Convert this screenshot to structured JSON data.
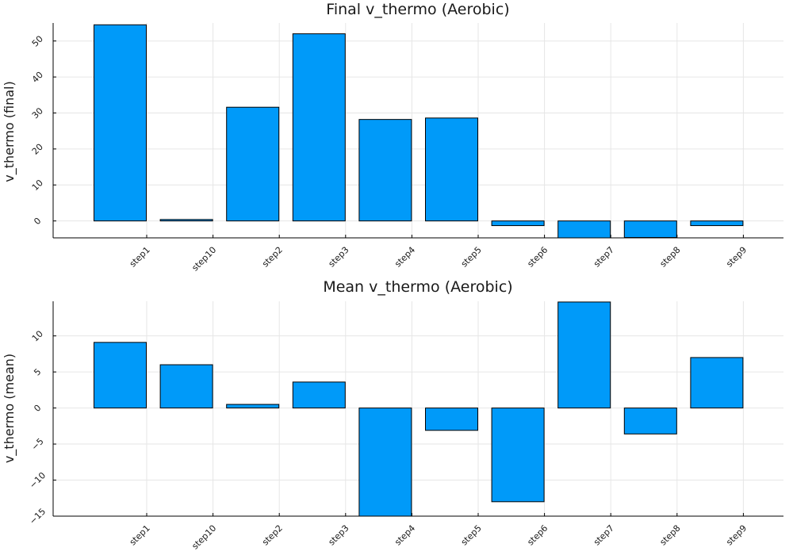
{
  "chart_data": [
    {
      "type": "bar",
      "title": "Final v_thermo (Aerobic)",
      "xlabel": "",
      "ylabel": "v_thermo (final)",
      "categories": [
        "step1",
        "step10",
        "step2",
        "step3",
        "step4",
        "step5",
        "step6",
        "step7",
        "step8",
        "step9"
      ],
      "values": [
        54.5,
        0.4,
        31.6,
        52.0,
        28.2,
        28.6,
        -1.3,
        -5.2,
        -4.6,
        -1.3
      ],
      "ylim": [
        -4.7,
        55.0
      ],
      "yticks": [
        0,
        10,
        20,
        30,
        40,
        50
      ],
      "grid": true,
      "bar_color": "#009af9"
    },
    {
      "type": "bar",
      "title": "Mean v_thermo (Aerobic)",
      "xlabel": "",
      "ylabel": "v_thermo (mean)",
      "categories": [
        "step1",
        "step10",
        "step2",
        "step3",
        "step4",
        "step5",
        "step6",
        "step7",
        "step8",
        "step9"
      ],
      "values": [
        9.1,
        6.0,
        0.5,
        3.6,
        -15.8,
        -3.1,
        -13.0,
        14.7,
        -3.6,
        7.0
      ],
      "ylim": [
        -15.0,
        14.8
      ],
      "yticks": [
        -15,
        -10,
        -5,
        0,
        5,
        10
      ],
      "grid": true,
      "bar_color": "#009af9"
    }
  ]
}
